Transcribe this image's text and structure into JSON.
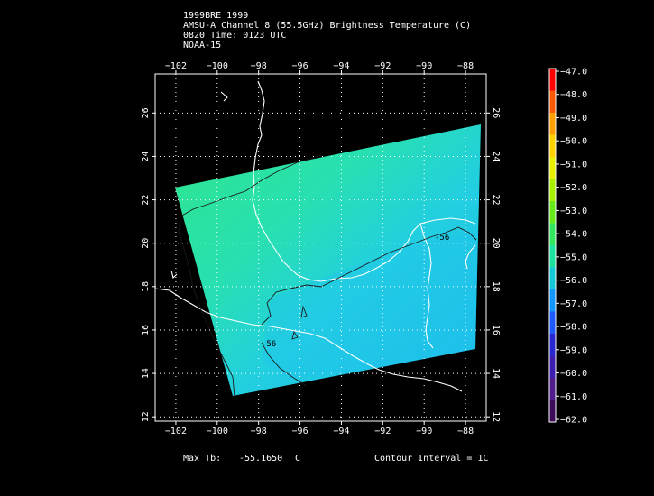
{
  "header": {
    "line1": "1999BRE 1999",
    "line2": "AMSU-A Channel 8 (55.5GHz) Brightness Temperature (C)",
    "line3": "0820 Time: 0123 UTC",
    "line4": "NOAA-15"
  },
  "map": {
    "lon_ticks": [
      "−102",
      "−100",
      "−98",
      "−96",
      "−94",
      "−92",
      "−90",
      "−88"
    ],
    "lon_values": [
      -102,
      -100,
      -98,
      -96,
      -94,
      -92,
      -90,
      -88
    ],
    "lat_ticks": [
      "12",
      "14",
      "16",
      "18",
      "20",
      "22",
      "24",
      "26"
    ],
    "lat_values": [
      12,
      14,
      16,
      18,
      20,
      22,
      24,
      26
    ],
    "lon_range": [
      -103,
      -87
    ],
    "lat_range": [
      11.8,
      27.8
    ],
    "contour_labels": [
      "-56",
      "-56"
    ],
    "grid": "dotted"
  },
  "colorbar": {
    "labels": [
      "−47.0",
      "−48.0",
      "−49.0",
      "−50.0",
      "−51.0",
      "−52.0",
      "−53.0",
      "−54.0",
      "−55.0",
      "−56.0",
      "−57.0",
      "−58.0",
      "−59.0",
      "−60.0",
      "−61.0",
      "−62.0"
    ],
    "colors": [
      "#ff0000",
      "#ff5a00",
      "#ffa000",
      "#ffd200",
      "#e6f000",
      "#a8ef00",
      "#66ea1a",
      "#33e660",
      "#1ee2a0",
      "#14c8d8",
      "#1496ff",
      "#1e5aff",
      "#2828d0",
      "#3c1eb0",
      "#501e8c",
      "#3c0a5a"
    ]
  },
  "footer": {
    "max_tb_label": "Max Tb:",
    "max_tb_value": "-55.1650",
    "max_tb_unit": "C",
    "contour_interval": "Contour Interval = 1C"
  }
}
